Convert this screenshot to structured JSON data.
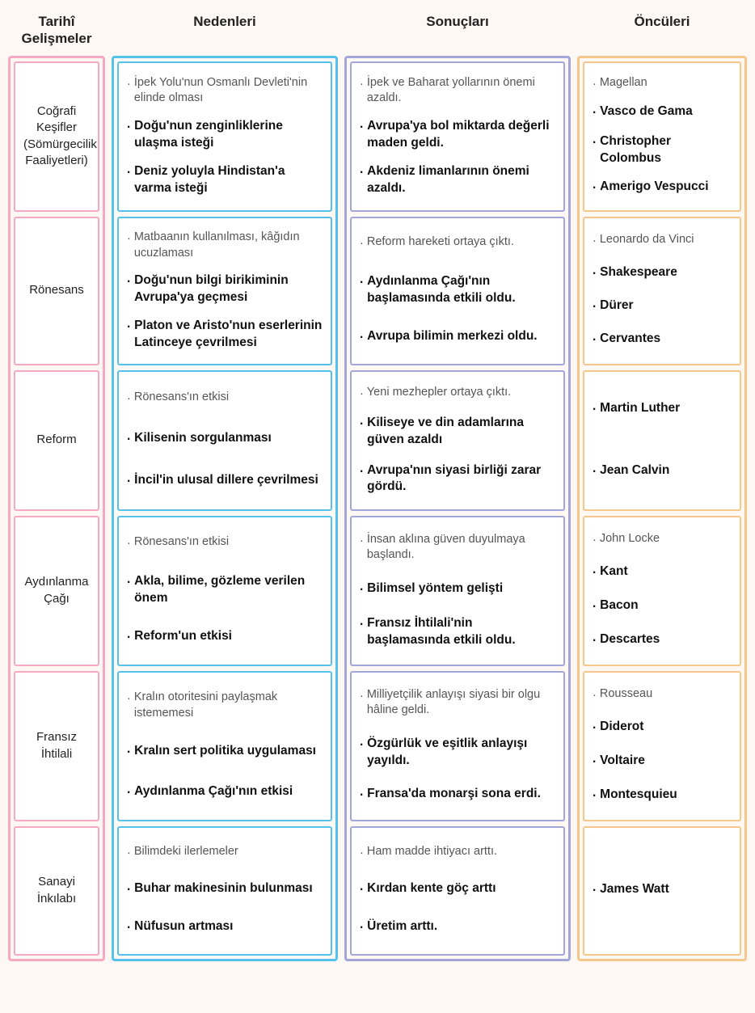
{
  "headers": [
    "Tarihî Gelişmeler",
    "Nedenleri",
    "Sonuçları",
    "Öncüleri"
  ],
  "colors": {
    "col0": "#f7a9c4",
    "col1": "#55c2ee",
    "col2": "#a3a6d9",
    "col3": "#f6c78a",
    "background": "#fdf8f4"
  },
  "rows": [
    {
      "title": "Coğrafi Keşifler (Sömürgecilik Faaliyetleri)",
      "nedenleri": [
        {
          "text": "İpek Yolu'nun Osmanlı Devleti'nin elinde olması",
          "style": "light"
        },
        {
          "text": "Doğu'nun zenginliklerine ulaşma isteği",
          "style": "bold"
        },
        {
          "text": "Deniz yoluyla Hindistan'a varma isteği",
          "style": "bold"
        }
      ],
      "sonuclari": [
        {
          "text": "İpek ve Baharat yollarının önemi azaldı.",
          "style": "light"
        },
        {
          "text": "Avrupa'ya bol miktarda değerli maden geldi.",
          "style": "bold"
        },
        {
          "text": "Akdeniz limanlarının önemi azaldı.",
          "style": "bold"
        }
      ],
      "onculeri": [
        {
          "text": "Magellan",
          "style": "light"
        },
        {
          "text": "Vasco de Gama",
          "style": "bold"
        },
        {
          "text": "Christopher Colombus",
          "style": "bold"
        },
        {
          "text": "Amerigo Vespucci",
          "style": "bold"
        }
      ]
    },
    {
      "title": "Rönesans",
      "nedenleri": [
        {
          "text": "Matbaanın kullanılması, kâğıdın ucuzlaması",
          "style": "light"
        },
        {
          "text": "Doğu'nun bilgi birikiminin Avrupa'ya geçmesi",
          "style": "bold"
        },
        {
          "text": "Platon ve Aristo'nun eserlerinin Latinceye çevrilmesi",
          "style": "bold"
        }
      ],
      "sonuclari": [
        {
          "text": "Reform hareketi ortaya çıktı.",
          "style": "light"
        },
        {
          "text": "Aydınlanma Çağı'nın başlamasında etkili oldu.",
          "style": "bold"
        },
        {
          "text": "Avrupa bilimin merkezi oldu.",
          "style": "bold"
        }
      ],
      "onculeri": [
        {
          "text": "Leonardo da Vinci",
          "style": "light"
        },
        {
          "text": "Shakespeare",
          "style": "bold"
        },
        {
          "text": "Dürer",
          "style": "bold"
        },
        {
          "text": "Cervantes",
          "style": "bold"
        }
      ]
    },
    {
      "title": "Reform",
      "nedenleri": [
        {
          "text": "Rönesans'ın etkisi",
          "style": "light"
        },
        {
          "text": "Kilisenin sorgulanması",
          "style": "bold"
        },
        {
          "text": "İncil'in ulusal dillere çevrilmesi",
          "style": "bold"
        }
      ],
      "sonuclari": [
        {
          "text": "Yeni mezhepler ortaya çıktı.",
          "style": "light"
        },
        {
          "text": "Kiliseye ve din adamlarına güven azaldı",
          "style": "bold"
        },
        {
          "text": "Avrupa'nın siyasi birliği zarar gördü.",
          "style": "bold"
        }
      ],
      "onculeri": [
        {
          "text": "Martin Luther",
          "style": "bold"
        },
        {
          "text": "Jean Calvin",
          "style": "bold"
        }
      ]
    },
    {
      "title": "Aydınlanma Çağı",
      "nedenleri": [
        {
          "text": "Rönesans'ın etkisi",
          "style": "light"
        },
        {
          "text": "Akla, bilime, gözleme verilen önem",
          "style": "bold"
        },
        {
          "text": "Reform'un etkisi",
          "style": "bold"
        }
      ],
      "sonuclari": [
        {
          "text": "İnsan aklına güven duyulmaya başlandı.",
          "style": "light"
        },
        {
          "text": "Bilimsel yöntem gelişti",
          "style": "bold"
        },
        {
          "text": "Fransız İhtilali'nin başlamasında etkili oldu.",
          "style": "bold"
        }
      ],
      "onculeri": [
        {
          "text": "John Locke",
          "style": "light"
        },
        {
          "text": "Kant",
          "style": "bold"
        },
        {
          "text": "Bacon",
          "style": "bold"
        },
        {
          "text": "Descartes",
          "style": "bold"
        }
      ]
    },
    {
      "title": "Fransız İhtilali",
      "nedenleri": [
        {
          "text": "Kralın otoritesini paylaşmak istememesi",
          "style": "light"
        },
        {
          "text": "Kralın sert politika uygulaması",
          "style": "bold"
        },
        {
          "text": "Aydınlanma Çağı'nın etkisi",
          "style": "bold"
        }
      ],
      "sonuclari": [
        {
          "text": "Milliyetçilik anlayışı siyasi bir olgu hâline geldi.",
          "style": "light"
        },
        {
          "text": "Özgürlük ve eşitlik anlayışı yayıldı.",
          "style": "bold"
        },
        {
          "text": "Fransa'da monarşi sona erdi.",
          "style": "bold"
        }
      ],
      "onculeri": [
        {
          "text": "Rousseau",
          "style": "light"
        },
        {
          "text": "Diderot",
          "style": "bold"
        },
        {
          "text": "Voltaire",
          "style": "bold"
        },
        {
          "text": "Montesquieu",
          "style": "bold"
        }
      ]
    },
    {
      "title": "Sanayi İnkılabı",
      "nedenleri": [
        {
          "text": "Bilimdeki ilerlemeler",
          "style": "light"
        },
        {
          "text": "Buhar makinesinin bulunması",
          "style": "bold"
        },
        {
          "text": "Nüfusun artması",
          "style": "bold"
        }
      ],
      "sonuclari": [
        {
          "text": "Ham madde ihtiyacı arttı.",
          "style": "light"
        },
        {
          "text": "Kırdan kente göç arttı",
          "style": "bold"
        },
        {
          "text": "Üretim arttı.",
          "style": "bold"
        }
      ],
      "onculeri": [
        {
          "text": "James Watt",
          "style": "bold"
        }
      ]
    }
  ]
}
